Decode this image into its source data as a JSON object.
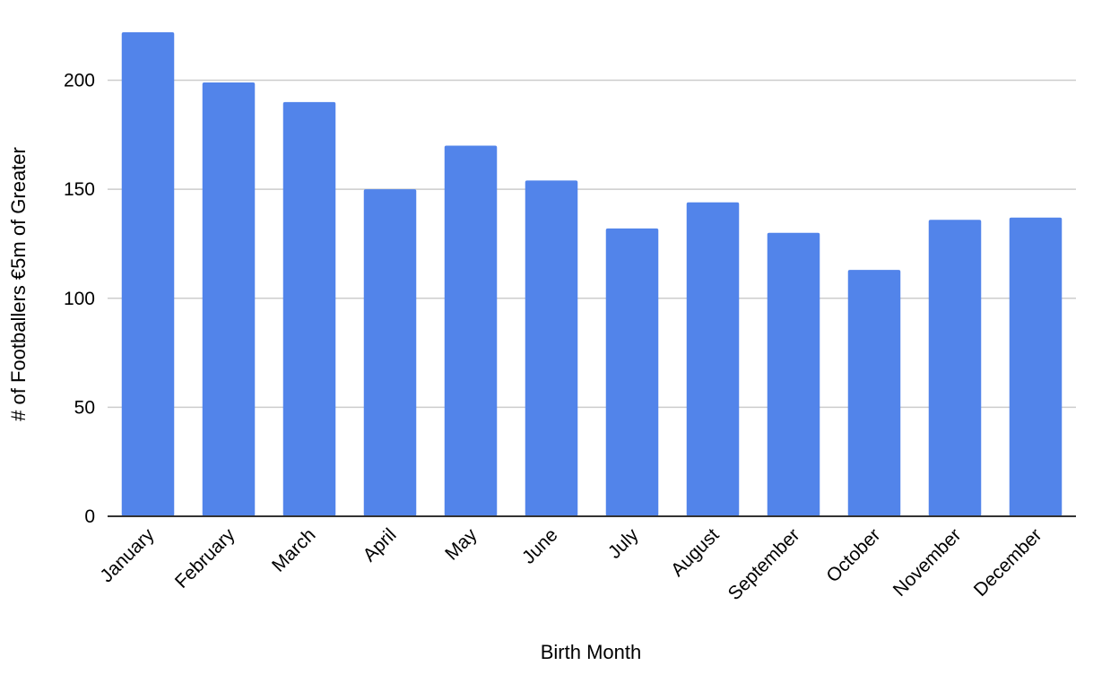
{
  "chart_data": {
    "type": "bar",
    "title": "",
    "xlabel": "Birth Month",
    "ylabel": "# of Footballers €5m of Greater",
    "categories": [
      "January",
      "February",
      "March",
      "April",
      "May",
      "June",
      "July",
      "August",
      "September",
      "October",
      "November",
      "December"
    ],
    "series": [
      {
        "values": [
          222,
          199,
          190,
          150,
          170,
          154,
          132,
          144,
          130,
          113,
          136,
          137
        ]
      }
    ],
    "ylim": [
      0,
      222
    ],
    "yticks": [
      0,
      50,
      100,
      150,
      200
    ],
    "grid": true,
    "legend": "none",
    "colors": {
      "bar": "#5284ea",
      "grid": "#cccccc",
      "axis": "#333333"
    }
  }
}
